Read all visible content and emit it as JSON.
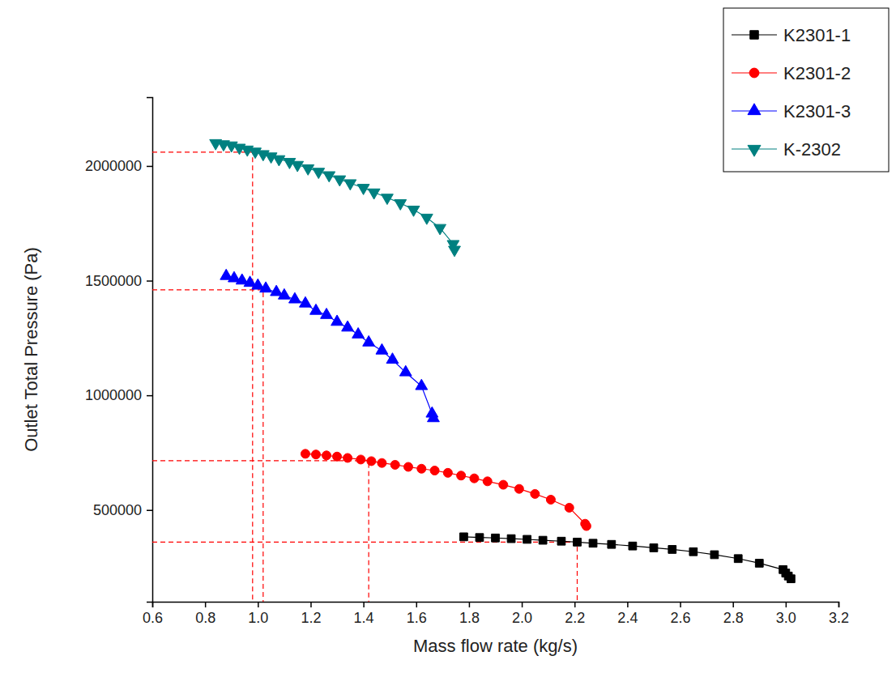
{
  "chart_data": {
    "type": "line",
    "x_label": "Mass flow rate (kg/s)",
    "y_label": "Outlet Total Pressure (Pa)",
    "xlim": [
      0.6,
      3.2
    ],
    "xticks": [
      0.6,
      0.8,
      {
        "value": 1,
        "label": "1.0"
      },
      1.2,
      1.4,
      1.6,
      1.8,
      {
        "value": 2,
        "label": "2.0"
      },
      2.2,
      2.4,
      2.6,
      2.8,
      {
        "value": 3,
        "label": "3.0"
      },
      3.2
    ],
    "ylim": [
      100000,
      2300000
    ],
    "yticks": [
      500000,
      1000000,
      1500000,
      2000000
    ],
    "grid": false,
    "legend": "top-right",
    "series": [
      {
        "name": "K2301-1",
        "color": "#000000",
        "marker": "square",
        "line_style": "solid",
        "x": [
          1.78,
          1.84,
          1.9,
          1.96,
          2.02,
          2.08,
          2.15,
          2.21,
          2.27,
          2.34,
          2.42,
          2.5,
          2.57,
          2.65,
          2.73,
          2.82,
          2.9,
          2.99,
          3.0,
          3.01,
          3.02
        ],
        "values": [
          383000,
          380000,
          378000,
          375000,
          372000,
          368000,
          364000,
          360000,
          355000,
          350000,
          343000,
          335000,
          328000,
          318000,
          305000,
          288000,
          268000,
          240000,
          225000,
          212000,
          200000
        ]
      },
      {
        "name": "K2301-2",
        "color": "#ff0000",
        "marker": "circle",
        "line_style": "solid",
        "x": [
          1.18,
          1.22,
          1.26,
          1.3,
          1.34,
          1.39,
          1.43,
          1.47,
          1.52,
          1.57,
          1.62,
          1.67,
          1.72,
          1.77,
          1.82,
          1.87,
          1.93,
          1.99,
          2.05,
          2.11,
          2.18,
          2.24,
          2.245
        ],
        "values": [
          745000,
          742000,
          738000,
          733000,
          727000,
          720000,
          713000,
          705000,
          697000,
          688000,
          680000,
          672000,
          662000,
          650000,
          638000,
          625000,
          610000,
          592000,
          570000,
          545000,
          510000,
          440000,
          430000
        ]
      },
      {
        "name": "K2301-3",
        "color": "#0000ff",
        "marker": "triangle",
        "line_style": "solid",
        "x": [
          0.88,
          0.91,
          0.94,
          0.97,
          1.0,
          1.03,
          1.07,
          1.1,
          1.14,
          1.18,
          1.22,
          1.26,
          1.3,
          1.34,
          1.38,
          1.42,
          1.47,
          1.51,
          1.56,
          1.62,
          1.66,
          1.665
        ],
        "values": [
          1520000,
          1510000,
          1500000,
          1490000,
          1478000,
          1465000,
          1450000,
          1435000,
          1418000,
          1400000,
          1368000,
          1350000,
          1320000,
          1295000,
          1265000,
          1230000,
          1195000,
          1155000,
          1100000,
          1040000,
          920000,
          900000
        ]
      },
      {
        "name": "K-2302",
        "color": "#008080",
        "marker": "triangle-down",
        "line_style": "solid",
        "x": [
          0.84,
          0.87,
          0.9,
          0.93,
          0.96,
          0.99,
          1.02,
          1.05,
          1.08,
          1.12,
          1.15,
          1.19,
          1.23,
          1.27,
          1.31,
          1.35,
          1.4,
          1.44,
          1.49,
          1.54,
          1.59,
          1.64,
          1.69,
          1.74,
          1.745
        ],
        "values": [
          2100000,
          2095000,
          2090000,
          2080000,
          2072000,
          2063000,
          2052000,
          2042000,
          2030000,
          2018000,
          2005000,
          1990000,
          1975000,
          1960000,
          1942000,
          1925000,
          1905000,
          1885000,
          1862000,
          1838000,
          1810000,
          1775000,
          1730000,
          1660000,
          1635000
        ]
      }
    ],
    "reference_lines": [
      {
        "x": 0.98,
        "y": 2060000
      },
      {
        "x": 1.02,
        "y": 1460000
      },
      {
        "x": 1.42,
        "y": 715000
      },
      {
        "x": 2.21,
        "y": 360000
      }
    ]
  }
}
